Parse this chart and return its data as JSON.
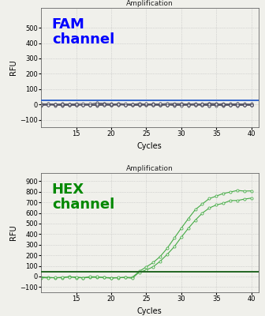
{
  "title": "Amplification",
  "xlabel": "Cycles",
  "ylabel": "RFU",
  "fam_label": "FAM\nchannel",
  "hex_label": "HEX\nchannel",
  "fam_color": "#0000ff",
  "hex_color": "#008800",
  "marker_color_fam": "#555566",
  "marker_color_hex": "#44aa44",
  "threshold_color_fam": "#3366cc",
  "threshold_color_hex": "#226622",
  "fam_ylim": [
    -150,
    630
  ],
  "fam_yticks": [
    -100,
    0,
    100,
    200,
    300,
    400,
    500
  ],
  "hex_ylim": [
    -150,
    980
  ],
  "hex_yticks": [
    -100,
    0,
    100,
    200,
    300,
    400,
    500,
    600,
    700,
    800,
    900
  ],
  "xlim": [
    10,
    41
  ],
  "xticks": [
    15,
    20,
    25,
    30,
    35,
    40
  ],
  "fam_threshold": 28,
  "hex_threshold": 45,
  "background_color": "#f0f0eb",
  "grid_color": "#bbbbbb",
  "num_lines_fam": 10
}
